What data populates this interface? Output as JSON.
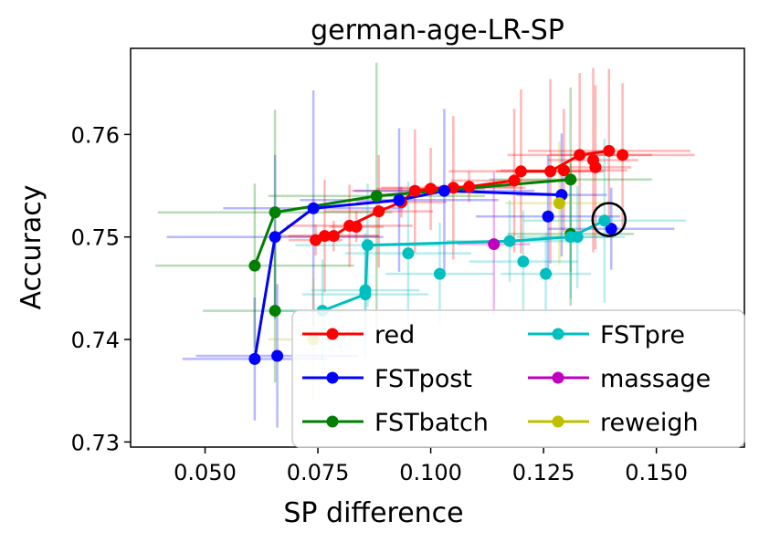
{
  "chart_data": {
    "type": "scatter",
    "title": "german-age-LR-SP",
    "xlabel": "SP difference",
    "ylabel": "Accuracy",
    "xlim": [
      0.0335,
      0.1695
    ],
    "ylim": [
      0.7295,
      0.7684
    ],
    "xticks": [
      "0.050",
      "0.075",
      "0.100",
      "0.125",
      "0.150"
    ],
    "xtick_values": [
      0.05,
      0.075,
      0.1,
      0.125,
      0.15
    ],
    "yticks": [
      "0.73",
      "0.74",
      "0.75",
      "0.76"
    ],
    "ytick_values": [
      0.73,
      0.74,
      0.75,
      0.76
    ],
    "legend_position": "lower-right",
    "highlight_circle": {
      "x": 0.1395,
      "y": 0.7517
    },
    "series": [
      {
        "name": "red",
        "color": "#ff0000",
        "points": [
          [
            0.0745,
            0.7497,
            0.006,
            0.0015
          ],
          [
            0.0765,
            0.7501,
            0.012,
            0.0055
          ],
          [
            0.0785,
            0.7501,
            0.01,
            0.0015
          ],
          [
            0.082,
            0.7511,
            0.014,
            0.004
          ],
          [
            0.0835,
            0.751,
            0.006,
            0.0015
          ],
          [
            0.0885,
            0.7525,
            0.012,
            0.0055
          ],
          [
            0.0935,
            0.7534,
            0.01,
            0.0015
          ],
          [
            0.0965,
            0.7545,
            0.014,
            0.006
          ],
          [
            0.1,
            0.7547,
            0.012,
            0.004
          ],
          [
            0.105,
            0.7548,
            0.016,
            0.007
          ],
          [
            0.1085,
            0.7549,
            0.01,
            0.0015
          ],
          [
            0.1185,
            0.7555,
            0.014,
            0.007
          ],
          [
            0.12,
            0.7564,
            0.016,
            0.008
          ],
          [
            0.1265,
            0.7564,
            0.012,
            0.009
          ],
          [
            0.1295,
            0.7565,
            0.014,
            0.006
          ],
          [
            0.133,
            0.758,
            0.016,
            0.008
          ],
          [
            0.136,
            0.7575,
            0.01,
            0.009
          ],
          [
            0.1365,
            0.7568,
            0.008,
            0.008
          ],
          [
            0.1395,
            0.7584,
            0.018,
            0.008
          ],
          [
            0.1425,
            0.758,
            0.016,
            0.007
          ]
        ],
        "line": [
          [
            0.0745,
            0.7497
          ],
          [
            0.0785,
            0.7501
          ],
          [
            0.082,
            0.7511
          ],
          [
            0.0885,
            0.7525
          ],
          [
            0.0935,
            0.7534
          ],
          [
            0.0965,
            0.7545
          ],
          [
            0.1,
            0.7547
          ],
          [
            0.1085,
            0.7549
          ],
          [
            0.1185,
            0.7555
          ],
          [
            0.12,
            0.7564
          ],
          [
            0.1265,
            0.7564
          ],
          [
            0.133,
            0.758
          ],
          [
            0.1395,
            0.7584
          ]
        ]
      },
      {
        "name": "FSTpost",
        "color": "#0000ff",
        "points": [
          [
            0.061,
            0.7381,
            0.016,
            0.006
          ],
          [
            0.066,
            0.7384,
            0.018,
            0.007
          ],
          [
            0.0655,
            0.75,
            0.024,
            0.008
          ],
          [
            0.074,
            0.7528,
            0.02,
            0.0115
          ],
          [
            0.093,
            0.7536,
            0.022,
            0.007
          ],
          [
            0.103,
            0.7545,
            0.02,
            0.008
          ],
          [
            0.126,
            0.752,
            0.016,
            0.006
          ],
          [
            0.129,
            0.7541,
            0.01,
            0.006
          ],
          [
            0.14,
            0.7508,
            0.014,
            0.004
          ]
        ],
        "line": [
          [
            0.061,
            0.7381
          ],
          [
            0.0655,
            0.75
          ],
          [
            0.074,
            0.7528
          ],
          [
            0.093,
            0.7536
          ],
          [
            0.103,
            0.7545
          ],
          [
            0.129,
            0.7541
          ]
        ]
      },
      {
        "name": "FSTbatch",
        "color": "#008000",
        "points": [
          [
            0.061,
            0.7472,
            0.022,
            0.008
          ],
          [
            0.0655,
            0.7428,
            0.016,
            0.007
          ],
          [
            0.0655,
            0.7524,
            0.026,
            0.01
          ],
          [
            0.088,
            0.754,
            0.024,
            0.013
          ],
          [
            0.131,
            0.7556,
            0.018,
            0.009
          ],
          [
            0.131,
            0.7503,
            0.014,
            0.007
          ]
        ],
        "line": [
          [
            0.061,
            0.7472
          ],
          [
            0.0655,
            0.7524
          ],
          [
            0.088,
            0.754
          ],
          [
            0.131,
            0.7556
          ]
        ]
      },
      {
        "name": "FSTpre",
        "color": "#00bfbf",
        "points": [
          [
            0.076,
            0.7428,
            0.01,
            0.005
          ],
          [
            0.0855,
            0.7444,
            0.014,
            0.006
          ],
          [
            0.0855,
            0.7448,
            0.012,
            0.005
          ],
          [
            0.086,
            0.7492,
            0.016,
            0.006
          ],
          [
            0.095,
            0.7484,
            0.014,
            0.007
          ],
          [
            0.102,
            0.7464,
            0.012,
            0.005
          ],
          [
            0.1175,
            0.7496,
            0.014,
            0.004
          ],
          [
            0.1205,
            0.7476,
            0.012,
            0.005
          ],
          [
            0.1255,
            0.7464,
            0.01,
            0.004
          ],
          [
            0.131,
            0.75,
            0.012,
            0.006
          ],
          [
            0.1325,
            0.75,
            0.008,
            0.005
          ],
          [
            0.1385,
            0.7516,
            0.018,
            0.008
          ]
        ],
        "line": [
          [
            0.076,
            0.7428
          ],
          [
            0.0855,
            0.7444
          ],
          [
            0.086,
            0.7492
          ],
          [
            0.1175,
            0.7496
          ],
          [
            0.131,
            0.75
          ],
          [
            0.1385,
            0.7516
          ]
        ]
      },
      {
        "name": "massage",
        "color": "#bf00bf",
        "points": [
          [
            0.114,
            0.7493,
            0.008,
            0.007
          ]
        ],
        "line": []
      },
      {
        "name": "reweigh",
        "color": "#bfbf00",
        "points": [
          [
            0.074,
            0.74,
            0.01,
            0.006
          ],
          [
            0.1285,
            0.7533,
            0.012,
            0.006
          ]
        ],
        "line": []
      }
    ]
  }
}
